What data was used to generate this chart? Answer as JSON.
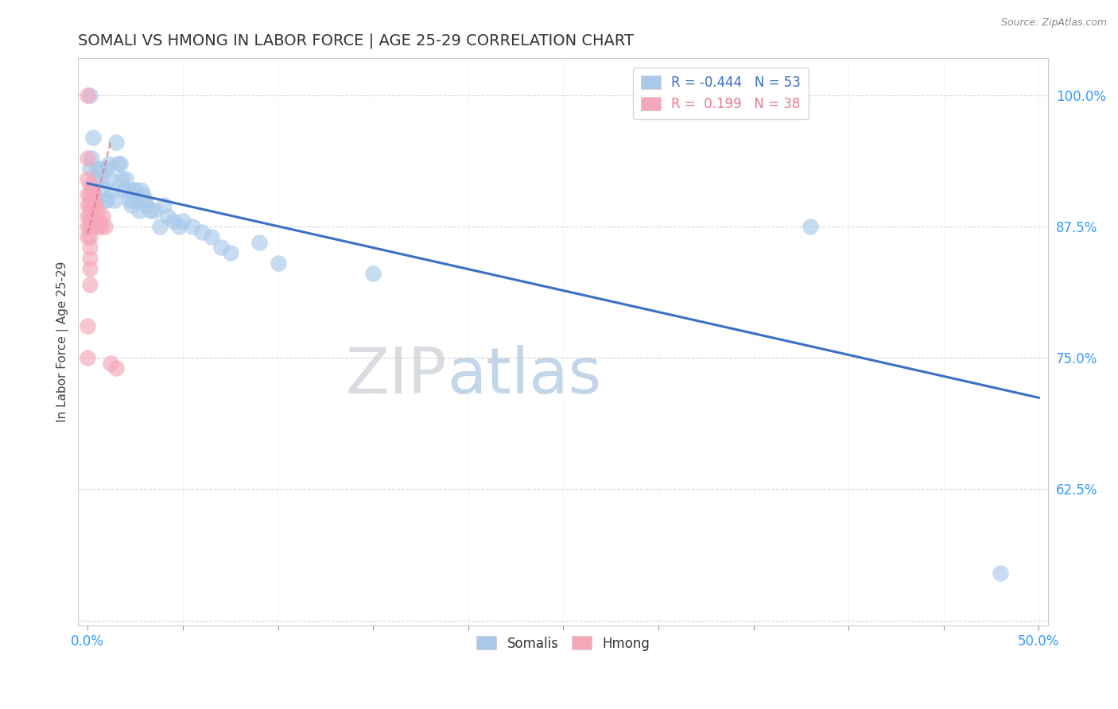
{
  "title": "SOMALI VS HMONG IN LABOR FORCE | AGE 25-29 CORRELATION CHART",
  "source_text": "Source: ZipAtlas.com",
  "ylabel": "In Labor Force | Age 25-29",
  "xlim": [
    -0.005,
    0.505
  ],
  "ylim": [
    0.495,
    1.035
  ],
  "xticks": [
    0.0,
    0.05,
    0.1,
    0.15,
    0.2,
    0.25,
    0.3,
    0.35,
    0.4,
    0.45,
    0.5
  ],
  "xticklabels": [
    "0.0%",
    "",
    "",
    "",
    "",
    "",
    "",
    "",
    "",
    "",
    "50.0%"
  ],
  "yticks": [
    0.5,
    0.625,
    0.75,
    0.875,
    1.0
  ],
  "yticklabels": [
    "",
    "62.5%",
    "75.0%",
    "87.5%",
    "100.0%"
  ],
  "blue_R": -0.444,
  "blue_N": 53,
  "pink_R": 0.199,
  "pink_N": 38,
  "blue_color": "#aac9ea",
  "pink_color": "#f5a8ba",
  "blue_line_color": "#3a6fc4",
  "pink_line_color": "#e8788a",
  "legend_label_blue": "Somalis",
  "legend_label_pink": "Hmong",
  "blue_scatter_x": [
    0.001,
    0.001,
    0.002,
    0.003,
    0.003,
    0.004,
    0.005,
    0.005,
    0.006,
    0.007,
    0.008,
    0.009,
    0.01,
    0.01,
    0.011,
    0.012,
    0.013,
    0.014,
    0.015,
    0.016,
    0.017,
    0.018,
    0.019,
    0.02,
    0.021,
    0.022,
    0.023,
    0.024,
    0.025,
    0.026,
    0.027,
    0.028,
    0.029,
    0.03,
    0.031,
    0.033,
    0.035,
    0.038,
    0.04,
    0.042,
    0.045,
    0.048,
    0.05,
    0.055,
    0.06,
    0.065,
    0.07,
    0.075,
    0.09,
    0.1,
    0.15,
    0.38,
    0.48
  ],
  "blue_scatter_y": [
    1.0,
    0.93,
    0.94,
    0.96,
    0.91,
    0.92,
    0.93,
    0.9,
    0.93,
    0.92,
    0.91,
    0.9,
    0.93,
    0.9,
    0.935,
    0.92,
    0.91,
    0.9,
    0.955,
    0.935,
    0.935,
    0.92,
    0.91,
    0.92,
    0.91,
    0.9,
    0.895,
    0.91,
    0.91,
    0.9,
    0.89,
    0.91,
    0.905,
    0.9,
    0.895,
    0.89,
    0.89,
    0.875,
    0.895,
    0.885,
    0.88,
    0.875,
    0.88,
    0.875,
    0.87,
    0.865,
    0.855,
    0.85,
    0.86,
    0.84,
    0.83,
    0.875,
    0.545
  ],
  "pink_scatter_x": [
    0.0,
    0.0,
    0.0,
    0.0,
    0.0,
    0.0,
    0.0,
    0.0,
    0.0,
    0.0,
    0.001,
    0.001,
    0.001,
    0.001,
    0.001,
    0.001,
    0.001,
    0.001,
    0.001,
    0.001,
    0.002,
    0.002,
    0.002,
    0.002,
    0.002,
    0.003,
    0.003,
    0.003,
    0.004,
    0.004,
    0.005,
    0.005,
    0.006,
    0.007,
    0.008,
    0.009,
    0.012,
    0.015
  ],
  "pink_scatter_y": [
    1.0,
    0.94,
    0.92,
    0.905,
    0.895,
    0.885,
    0.875,
    0.865,
    0.78,
    0.75,
    0.915,
    0.905,
    0.895,
    0.885,
    0.875,
    0.865,
    0.855,
    0.845,
    0.835,
    0.82,
    0.91,
    0.9,
    0.895,
    0.885,
    0.875,
    0.905,
    0.895,
    0.885,
    0.895,
    0.885,
    0.89,
    0.875,
    0.88,
    0.875,
    0.885,
    0.875,
    0.745,
    0.74
  ],
  "blue_line_x": [
    0.0,
    0.5
  ],
  "blue_line_y": [
    0.916,
    0.712
  ],
  "pink_line_x": [
    0.0,
    0.012
  ],
  "pink_line_y": [
    0.868,
    0.955
  ]
}
